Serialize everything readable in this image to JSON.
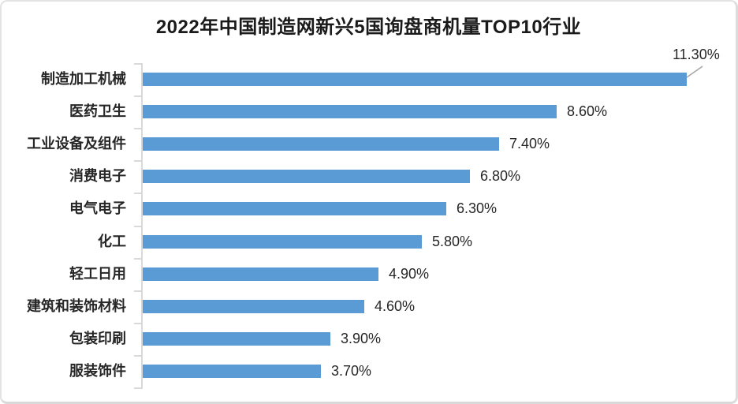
{
  "chart_data": {
    "type": "bar",
    "orientation": "horizontal",
    "title": "2022年中国制造网新兴5国询盘商机量TOP10行业",
    "categories": [
      "制造加工机械",
      "医药卫生",
      "工业设备及组件",
      "消费电子",
      "电气电子",
      "化工",
      "轻工日用",
      "建筑和装饰材料",
      "包装印刷",
      "服装饰件"
    ],
    "values": [
      11.3,
      8.6,
      7.4,
      6.8,
      6.3,
      5.8,
      4.9,
      4.6,
      3.9,
      3.7
    ],
    "value_labels": [
      "11.30%",
      "8.60%",
      "7.40%",
      "6.80%",
      "6.30%",
      "5.80%",
      "4.90%",
      "4.60%",
      "3.90%",
      "3.70%"
    ],
    "unit": "%",
    "xlim": [
      0,
      12
    ],
    "grid": false,
    "legend": "none",
    "xlabel": "",
    "ylabel": "",
    "callout_index": 0,
    "colors": {
      "bar": "#5B9BD5",
      "axis": "#D9D9D9",
      "tick": "#D9D9D9",
      "leader_line": "#A6A6A6",
      "title_text": "#1A1A1A",
      "label_text": "#262626",
      "background": "#FFFFFF",
      "card_border": "#DCDCDC"
    }
  }
}
